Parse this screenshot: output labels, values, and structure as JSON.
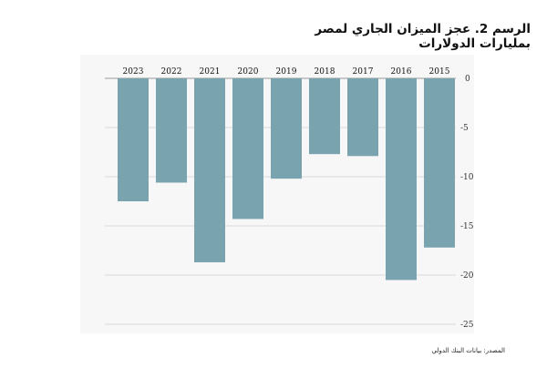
{
  "title_line1": "الرسم 2. عجز الميزان الجاري لمصر",
  "title_line2": "بمليارات الدولارات",
  "source": "المصدر: بيانات البنك الدولي",
  "chart_data": {
    "type": "bar",
    "title": "الرسم 2. عجز الميزان الجاري لمصر",
    "subtitle": "بمليارات الدولارات",
    "categories": [
      "2023",
      "2022",
      "2021",
      "2020",
      "2019",
      "2018",
      "2017",
      "2016",
      "2015"
    ],
    "values": [
      -12.5,
      -10.6,
      -18.7,
      -14.3,
      -10.2,
      -7.7,
      -7.9,
      -20.5,
      -17.2
    ],
    "yticks": [
      0,
      -5,
      -10,
      -15,
      -20,
      -25
    ],
    "ylim": [
      -25,
      0
    ],
    "xlabel": "",
    "ylabel": "",
    "bar_color": "#7aa3b0",
    "grid": true
  }
}
